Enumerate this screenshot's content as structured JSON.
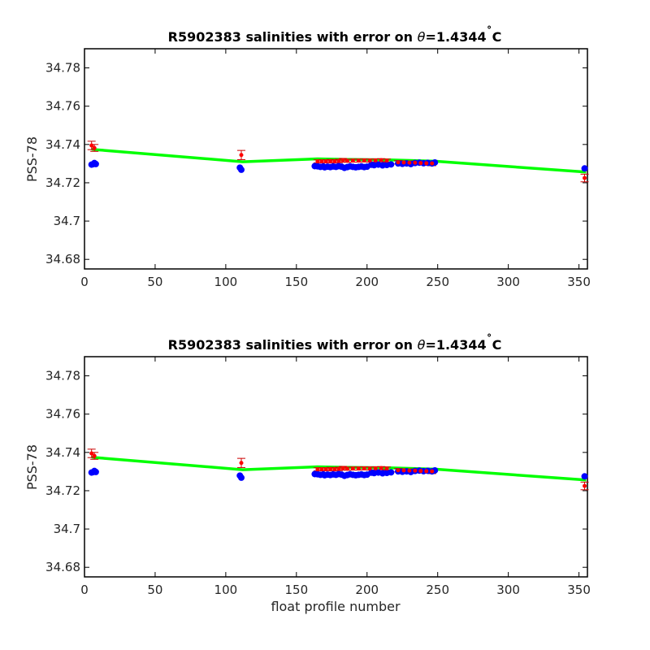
{
  "chart_data": [
    {
      "type": "scatter",
      "title_prefix": "R5902383 salinities with error on ",
      "title_theta": "θ",
      "title_suffix": "=1.4344",
      "title_degree": "˚",
      "title_unit": "C",
      "xlabel": "",
      "ylabel": "PSS-78",
      "xlim": [
        0,
        356
      ],
      "ylim": [
        34.675,
        34.79
      ],
      "xticks": [
        0,
        50,
        100,
        150,
        200,
        250,
        300,
        350
      ],
      "yticks": [
        34.68,
        34.7,
        34.72,
        34.74,
        34.76,
        34.78
      ],
      "ytick_labels": [
        "34.68",
        "34.7",
        "34.72",
        "34.74",
        "34.76",
        "34.78"
      ],
      "colors": {
        "fit": "#00ff00",
        "raw": "#0000ff",
        "mapped": "#ff0000",
        "error": "#cc0000"
      },
      "fit_line": {
        "x": [
          5,
          8,
          112,
          165,
          185,
          200,
          215,
          225,
          248,
          355
        ],
        "y": [
          34.7378,
          34.7375,
          34.7312,
          34.7327,
          34.7324,
          34.7323,
          34.7322,
          34.732,
          34.7315,
          34.7258
        ]
      },
      "raw_salinity": {
        "x": [
          5,
          6,
          7,
          8,
          110,
          111,
          163,
          165,
          167,
          169,
          170,
          172,
          174,
          176,
          178,
          180,
          182,
          184,
          186,
          188,
          190,
          192,
          194,
          196,
          198,
          200,
          203,
          205,
          208,
          211,
          214,
          217,
          222,
          225,
          228,
          231,
          234,
          237,
          240,
          243,
          246,
          248,
          354
        ],
        "y": [
          34.7295,
          34.7297,
          34.7303,
          34.7298,
          34.7279,
          34.7268,
          34.7287,
          34.7286,
          34.7283,
          34.7285,
          34.7281,
          34.7284,
          34.7282,
          34.7285,
          34.7283,
          34.7287,
          34.7284,
          34.7278,
          34.7282,
          34.7286,
          34.7283,
          34.7281,
          34.7283,
          34.7285,
          34.7282,
          34.7284,
          34.7294,
          34.7292,
          34.7295,
          34.7291,
          34.7293,
          34.7296,
          34.7301,
          34.7299,
          34.7301,
          34.7298,
          34.7303,
          34.7305,
          34.7302,
          34.7304,
          34.7301,
          34.7306,
          34.7275
        ]
      },
      "mapped_salinity": {
        "x": [
          5,
          7,
          111,
          165,
          168,
          171,
          174,
          177,
          180,
          183,
          186,
          190,
          194,
          198,
          202,
          206,
          210,
          214,
          222,
          226,
          230,
          234,
          238,
          242,
          246,
          354
        ],
        "y": [
          34.7395,
          34.7382,
          34.7345,
          34.7312,
          34.7312,
          34.7312,
          34.7313,
          34.7312,
          34.7314,
          34.7318,
          34.7315,
          34.7316,
          34.7316,
          34.7317,
          34.7316,
          34.7317,
          34.7318,
          34.7316,
          34.7307,
          34.7306,
          34.7305,
          34.7305,
          34.7303,
          34.7302,
          34.7301,
          34.7225
        ],
        "err": [
          0.0022,
          0.0018,
          0.0024,
          0.0008,
          0.0008,
          0.0008,
          0.0009,
          0.0008,
          0.0009,
          0.0009,
          0.0008,
          0.0008,
          0.0008,
          0.0008,
          0.0008,
          0.0008,
          0.0008,
          0.0008,
          0.0009,
          0.0009,
          0.0009,
          0.0009,
          0.0009,
          0.001,
          0.0012,
          0.002
        ]
      }
    },
    {
      "type": "scatter",
      "title_prefix": "R5902383 salinities with error on ",
      "title_theta": "θ",
      "title_suffix": "=1.4344",
      "title_degree": "˚",
      "title_unit": "C",
      "xlabel": "float profile number",
      "ylabel": "PSS-78",
      "xlim": [
        0,
        356
      ],
      "ylim": [
        34.675,
        34.79
      ],
      "xticks": [
        0,
        50,
        100,
        150,
        200,
        250,
        300,
        350
      ],
      "yticks": [
        34.68,
        34.7,
        34.72,
        34.74,
        34.76,
        34.78
      ],
      "ytick_labels": [
        "34.68",
        "34.7",
        "34.72",
        "34.74",
        "34.76",
        "34.78"
      ],
      "colors": {
        "fit": "#00ff00",
        "raw": "#0000ff",
        "mapped": "#ff0000",
        "error": "#cc0000"
      },
      "fit_line": {
        "x": [
          5,
          8,
          112,
          165,
          185,
          200,
          215,
          225,
          248,
          355
        ],
        "y": [
          34.7378,
          34.7375,
          34.7312,
          34.7327,
          34.7324,
          34.7323,
          34.7322,
          34.732,
          34.7315,
          34.7258
        ]
      },
      "raw_salinity": {
        "x": [
          5,
          6,
          7,
          8,
          110,
          111,
          163,
          165,
          167,
          169,
          170,
          172,
          174,
          176,
          178,
          180,
          182,
          184,
          186,
          188,
          190,
          192,
          194,
          196,
          198,
          200,
          203,
          205,
          208,
          211,
          214,
          217,
          222,
          225,
          228,
          231,
          234,
          237,
          240,
          243,
          246,
          248,
          354
        ],
        "y": [
          34.7295,
          34.7297,
          34.7303,
          34.7298,
          34.7279,
          34.7268,
          34.7287,
          34.7286,
          34.7283,
          34.7285,
          34.7281,
          34.7284,
          34.7282,
          34.7285,
          34.7283,
          34.7287,
          34.7284,
          34.7278,
          34.7282,
          34.7286,
          34.7283,
          34.7281,
          34.7283,
          34.7285,
          34.7282,
          34.7284,
          34.7294,
          34.7292,
          34.7295,
          34.7291,
          34.7293,
          34.7296,
          34.7301,
          34.7299,
          34.7301,
          34.7298,
          34.7303,
          34.7305,
          34.7302,
          34.7304,
          34.7301,
          34.7306,
          34.7275
        ]
      },
      "mapped_salinity": {
        "x": [
          5,
          7,
          111,
          165,
          168,
          171,
          174,
          177,
          180,
          183,
          186,
          190,
          194,
          198,
          202,
          206,
          210,
          214,
          222,
          226,
          230,
          234,
          238,
          242,
          246,
          354
        ],
        "y": [
          34.7395,
          34.7382,
          34.7345,
          34.7312,
          34.7312,
          34.7312,
          34.7313,
          34.7312,
          34.7314,
          34.7318,
          34.7315,
          34.7316,
          34.7316,
          34.7317,
          34.7316,
          34.7317,
          34.7318,
          34.7316,
          34.7307,
          34.7306,
          34.7305,
          34.7305,
          34.7303,
          34.7302,
          34.7301,
          34.7225
        ],
        "err": [
          0.0022,
          0.0018,
          0.0024,
          0.0008,
          0.0008,
          0.0008,
          0.0009,
          0.0008,
          0.0009,
          0.0009,
          0.0008,
          0.0008,
          0.0008,
          0.0008,
          0.0008,
          0.0008,
          0.0008,
          0.0008,
          0.0009,
          0.0009,
          0.0009,
          0.0009,
          0.0009,
          0.001,
          0.0012,
          0.002
        ]
      }
    }
  ]
}
